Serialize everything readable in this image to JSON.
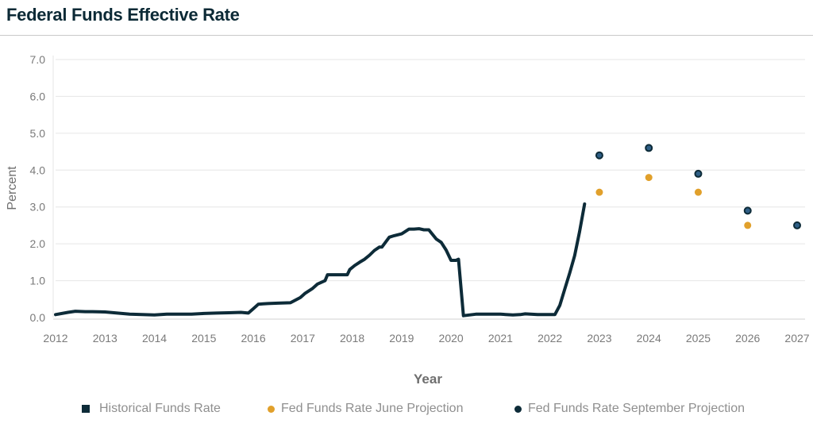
{
  "header": {
    "title": "Federal Funds Effective Rate"
  },
  "colors": {
    "historical": "#0d2b38",
    "june": "#e1a02b",
    "september": "#0d2b38",
    "september_inner": "#2f5f86",
    "axis_text": "#7a7a7a",
    "grid": "#e6e6e6"
  },
  "legend": {
    "historical": "Historical Funds Rate",
    "june": "Fed Funds Rate June Projection",
    "september": "Fed Funds Rate September Projection"
  },
  "chart_data": {
    "type": "line",
    "title": "Federal Funds Effective Rate",
    "xlabel": "Year",
    "ylabel": "Percent",
    "xlim": [
      2012,
      2027
    ],
    "ylim": [
      0,
      7
    ],
    "x_ticks": [
      "2012",
      "2013",
      "2014",
      "2015",
      "2016",
      "2017",
      "2018",
      "2019",
      "2020",
      "2021",
      "2022",
      "2023",
      "2024",
      "2025",
      "2026",
      "2027"
    ],
    "y_ticks": [
      "0.0",
      "1.0",
      "2.0",
      "3.0",
      "4.0",
      "5.0",
      "6.0",
      "7.0"
    ],
    "series": [
      {
        "name": "Historical Funds Rate",
        "kind": "line",
        "x": [
          2012.0,
          2012.25,
          2012.4,
          2012.6,
          2012.75,
          2013.0,
          2013.25,
          2013.5,
          2013.75,
          2014.0,
          2014.25,
          2014.5,
          2014.75,
          2015.0,
          2015.25,
          2015.5,
          2015.75,
          2015.9,
          2016.0,
          2016.1,
          2016.2,
          2016.3,
          2016.5,
          2016.75,
          2016.95,
          2017.05,
          2017.2,
          2017.3,
          2017.45,
          2017.5,
          2017.6,
          2017.75,
          2017.9,
          2017.95,
          2018.05,
          2018.15,
          2018.25,
          2018.35,
          2018.45,
          2018.55,
          2018.6,
          2018.75,
          2018.85,
          2019.0,
          2019.15,
          2019.25,
          2019.35,
          2019.45,
          2019.55,
          2019.7,
          2019.8,
          2019.9,
          2020.0,
          2020.1,
          2020.15,
          2020.25,
          2020.5,
          2020.75,
          2021.0,
          2021.25,
          2021.4,
          2021.5,
          2021.75,
          2022.0,
          2022.1,
          2022.2,
          2022.3,
          2022.4,
          2022.5,
          2022.6,
          2022.7
        ],
        "y": [
          0.08,
          0.14,
          0.17,
          0.16,
          0.16,
          0.15,
          0.12,
          0.09,
          0.08,
          0.07,
          0.09,
          0.09,
          0.09,
          0.11,
          0.12,
          0.13,
          0.14,
          0.12,
          0.24,
          0.36,
          0.37,
          0.38,
          0.39,
          0.4,
          0.54,
          0.66,
          0.79,
          0.91,
          1.0,
          1.16,
          1.16,
          1.16,
          1.16,
          1.3,
          1.41,
          1.5,
          1.58,
          1.69,
          1.82,
          1.91,
          1.91,
          2.18,
          2.22,
          2.27,
          2.4,
          2.4,
          2.41,
          2.38,
          2.38,
          2.13,
          2.04,
          1.83,
          1.55,
          1.55,
          1.58,
          0.05,
          0.09,
          0.09,
          0.09,
          0.07,
          0.08,
          0.1,
          0.08,
          0.08,
          0.08,
          0.33,
          0.77,
          1.21,
          1.68,
          2.33,
          3.08
        ]
      },
      {
        "name": "Fed Funds Rate June Projection",
        "kind": "scatter",
        "x": [
          2023,
          2024,
          2025,
          2026
        ],
        "y": [
          3.4,
          3.8,
          3.4,
          2.5
        ]
      },
      {
        "name": "Fed Funds Rate September Projection",
        "kind": "scatter",
        "x": [
          2023,
          2024,
          2025,
          2026,
          2027
        ],
        "y": [
          4.4,
          4.6,
          3.9,
          2.9,
          2.5
        ]
      }
    ]
  }
}
